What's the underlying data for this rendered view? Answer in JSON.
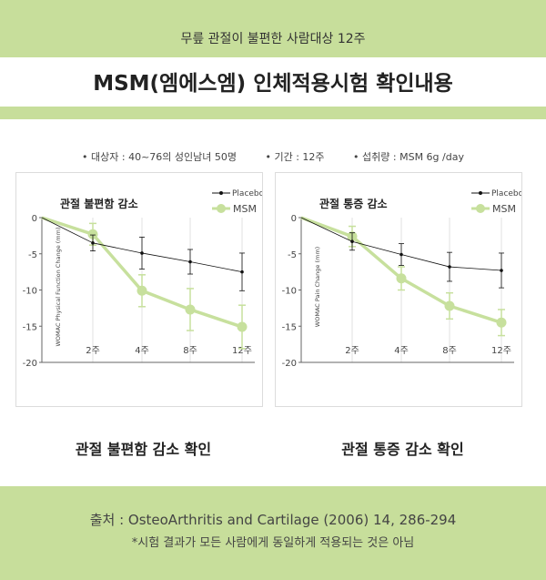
{
  "header": {
    "subtitle": "무릎 관절이 불편한 사람대상 12주",
    "title": "MSM(엠에스엠) 인체적용시험 확인내용"
  },
  "study_info": [
    "• 대상자 : 40~76의 성인남녀 50명",
    "• 기간 : 12주",
    "• 섭취량 : MSM 6g /day"
  ],
  "captions": [
    "관절 불편함 감소 확인",
    "관절 통증 감소 확인"
  ],
  "footer": {
    "source": "출처 : OsteoArthritis and Cartilage (2006) 14, 286-294",
    "note": "*시험 결과가 모든 사람에게 동일하게 적용되는 것은 아님"
  },
  "colors": {
    "placebo": "#111111",
    "msm": "#c7e09d",
    "band": "#c7de9b"
  },
  "chart_data": [
    {
      "type": "line",
      "title": "관절 불편함 감소",
      "ylabel": "WOMAC Physical Function Change (mm)",
      "xlabel": "",
      "categories": [
        "",
        "2주",
        "4주",
        "8주",
        "12주"
      ],
      "x": [
        0,
        2,
        4,
        8,
        12
      ],
      "ylim": [
        -20,
        0
      ],
      "yticks": [
        0,
        -5,
        -10,
        -15,
        -20
      ],
      "grid": "vertical",
      "legend": "top-right",
      "series": [
        {
          "name": "Placebo",
          "values": [
            0,
            -3.5,
            -4.9,
            -6.1,
            -7.5
          ],
          "errors": [
            0,
            1.1,
            2.2,
            1.7,
            2.6
          ]
        },
        {
          "name": "MSM",
          "values": [
            0,
            -2.3,
            -10.1,
            -12.7,
            -15.1
          ],
          "errors": [
            0,
            1.5,
            2.2,
            2.9,
            3.0
          ]
        }
      ]
    },
    {
      "type": "line",
      "title": "관절 통증 감소",
      "ylabel": "WOMAC Pain Change (mm)",
      "xlabel": "",
      "categories": [
        "",
        "2주",
        "4주",
        "8주",
        "12주"
      ],
      "x": [
        0,
        2,
        4,
        8,
        12
      ],
      "ylim": [
        -20,
        0
      ],
      "yticks": [
        0,
        -5,
        -10,
        -15,
        -20
      ],
      "grid": "vertical",
      "legend": "top-right",
      "series": [
        {
          "name": "Placebo",
          "values": [
            0,
            -3.3,
            -5.1,
            -6.8,
            -7.3
          ],
          "errors": [
            0,
            1.2,
            1.5,
            2.0,
            2.4
          ]
        },
        {
          "name": "MSM",
          "values": [
            0,
            -2.6,
            -8.4,
            -12.2,
            -14.5
          ],
          "errors": [
            0,
            1.4,
            1.6,
            1.8,
            1.8
          ]
        }
      ]
    }
  ]
}
